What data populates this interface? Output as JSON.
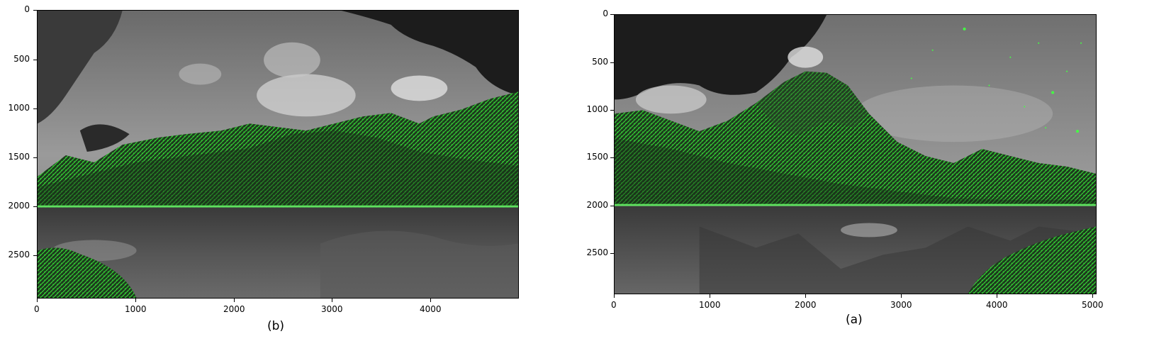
{
  "figure": {
    "panels": [
      {
        "id": "b",
        "label": "(b)",
        "x_ticks": [
          "0",
          "1000",
          "2000",
          "3000",
          "4000"
        ],
        "x_tick_values": [
          0,
          1000,
          2000,
          3000,
          4000
        ],
        "x_max": 4900,
        "y_ticks": [
          "0",
          "500",
          "1000",
          "1500",
          "2000",
          "2500"
        ],
        "y_tick_values": [
          0,
          500,
          1000,
          1500,
          2000,
          2500
        ],
        "y_max": 2930,
        "content": "grayscale mountain lake landscape with green edge overlay"
      },
      {
        "id": "a",
        "label": "(a)",
        "x_ticks": [
          "0",
          "1000",
          "2000",
          "3000",
          "4000",
          "5000"
        ],
        "x_tick_values": [
          0,
          1000,
          2000,
          3000,
          4000,
          5000
        ],
        "x_max": 5050,
        "y_ticks": [
          "0",
          "500",
          "1000",
          "1500",
          "2000",
          "2500"
        ],
        "y_tick_values": [
          0,
          500,
          1000,
          1500,
          2000,
          2500
        ],
        "y_max": 2930,
        "content": "grayscale mountain lake landscape with green edge overlay and starry sky"
      }
    ],
    "colors": {
      "edge_green": "#33ee33",
      "dark_sky": "#1e1e1e",
      "cloud_gray": "#a8a8a8",
      "water_gray": "#4a4a4a"
    }
  }
}
